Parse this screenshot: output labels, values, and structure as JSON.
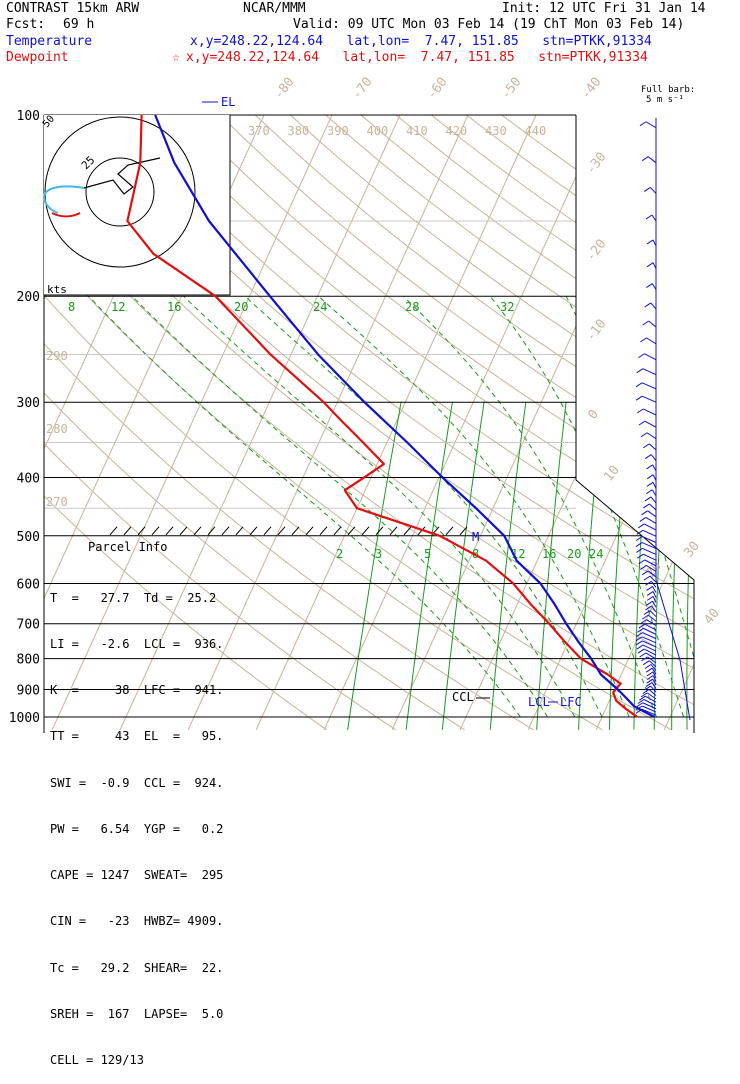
{
  "header": {
    "model": "CONTRAST 15km ARW",
    "producer": "NCAR/MMM",
    "init": "Init: 12 UTC Fri 31 Jan 14",
    "fcst_label": "Fcst:",
    "fcst_hours": "69 h",
    "valid": "Valid: 09 UTC Mon 03 Feb 14 (19 ChT Mon 03 Feb 14)",
    "temperature_label": "Temperature",
    "temperature_loc": "x,y=248.22,124.64   lat,lon=  7.47, 151.85   stn=PTKK,91334",
    "dewpoint_label": "Dewpoint",
    "dewpoint_marker": "☆",
    "dewpoint_loc": "x,y=248.22,124.64   lat,lon=  7.47, 151.85   stn=PTKK,91334"
  },
  "barb_legend": {
    "line1": "Full barb:",
    "line2": "5 m s⁻¹"
  },
  "pressure_labels": [
    "100",
    "200",
    "300",
    "400",
    "500",
    "600",
    "700",
    "800",
    "900",
    "1000"
  ],
  "isotherm_labels": [
    "-80",
    "-70",
    "-60",
    "-50",
    "-40",
    "-30",
    "-20",
    "-10",
    "0",
    "10",
    "20",
    "30",
    "40"
  ],
  "theta_labels_top": [
    "370",
    "380",
    "390",
    "400",
    "410",
    "420",
    "430",
    "440"
  ],
  "theta_labels_left": [
    "290",
    "280",
    "270"
  ],
  "mixing_ratio_labels_upper": [
    "8",
    "12",
    "16",
    "20",
    "24",
    "28",
    "32"
  ],
  "mixing_ratio_labels_lower": [
    "2",
    "3",
    "5",
    "8",
    "12",
    "16",
    "20",
    "24"
  ],
  "hodograph": {
    "ring_label": "25",
    "units": "kts"
  },
  "level_markers": {
    "el": "EL",
    "m": "M",
    "ccl": "CCL",
    "lcl": "LCL",
    "lfc": "LFC"
  },
  "parcel_info": {
    "title": "Parcel Info",
    "rows": [
      "T  =   27.7  Td =  25.2",
      "LI =   -2.6  LCL =  936.",
      "K  =     38  LFC =  941.",
      "TT =     43  EL  =   95.",
      "SWI =  -0.9  CCL =  924.",
      "PW =   6.54  YGP =   0.2",
      "CAPE = 1247  SWEAT=  295",
      "CIN =   -23  HWBZ= 4909.",
      "Tc =   29.2  SHEAR=  22.",
      "SREH =  167  LAPSE=  5.0",
      "CELL = 129/13"
    ]
  },
  "colors": {
    "temperature": "#1010d0",
    "dewpoint": "#e01010",
    "isotherm": "#c8b49a",
    "mixing_ratio": "#1a9a1a",
    "moist_adiabat": "#1a9a1a",
    "isobar": "#000000",
    "hodo_low": "#e01010",
    "hodo_mid": "#40b8e8"
  },
  "chart_data": {
    "type": "line",
    "title": "",
    "ylabel": "",
    "pressure_levels_hPa": [
      100,
      200,
      300,
      400,
      500,
      600,
      700,
      800,
      900,
      1000
    ],
    "series": [
      {
        "name": "Temperature",
        "points": [
          [
            1000,
            27.7
          ],
          [
            960,
            24.0
          ],
          [
            925,
            22.0
          ],
          [
            900,
            20.5
          ],
          [
            850,
            17.0
          ],
          [
            800,
            14.5
          ],
          [
            750,
            11.5
          ],
          [
            700,
            8.5
          ],
          [
            650,
            5.5
          ],
          [
            600,
            2.0
          ],
          [
            550,
            -3.0
          ],
          [
            500,
            -6.5
          ],
          [
            450,
            -12.5
          ],
          [
            400,
            -19.5
          ],
          [
            350,
            -27.0
          ],
          [
            300,
            -36.0
          ],
          [
            250,
            -46.0
          ],
          [
            200,
            -57.0
          ],
          [
            150,
            -71.0
          ],
          [
            120,
            -80.0
          ],
          [
            100,
            -86.0
          ]
        ]
      },
      {
        "name": "Dewpoint",
        "points": [
          [
            1000,
            25.2
          ],
          [
            970,
            23.0
          ],
          [
            940,
            21.0
          ],
          [
            910,
            20.0
          ],
          [
            880,
            20.5
          ],
          [
            850,
            18.0
          ],
          [
            800,
            13.0
          ],
          [
            750,
            9.5
          ],
          [
            700,
            6.0
          ],
          [
            650,
            2.0
          ],
          [
            600,
            -2.0
          ],
          [
            550,
            -7.5
          ],
          [
            500,
            -16.0
          ],
          [
            450,
            -30.0
          ],
          [
            420,
            -33.0
          ],
          [
            400,
            -31.0
          ],
          [
            380,
            -29.0
          ],
          [
            350,
            -33.5
          ],
          [
            320,
            -38.5
          ],
          [
            300,
            -42.0
          ],
          [
            250,
            -53.0
          ],
          [
            200,
            -65.0
          ],
          [
            170,
            -77.0
          ],
          [
            150,
            -83.0
          ],
          [
            120,
            -85.0
          ],
          [
            100,
            -88.0
          ]
        ]
      }
    ]
  }
}
